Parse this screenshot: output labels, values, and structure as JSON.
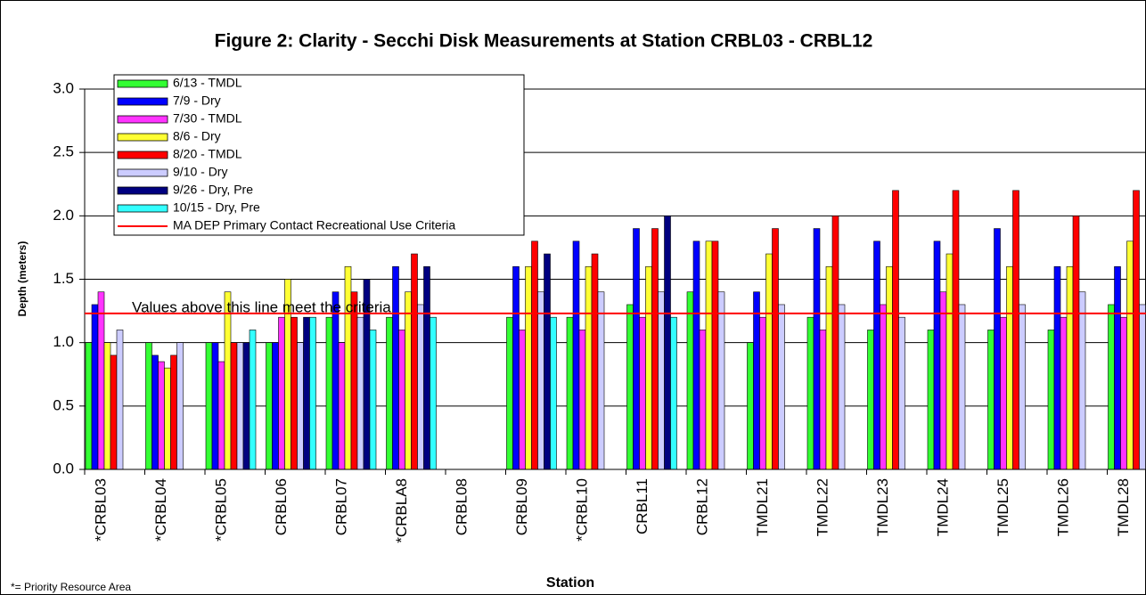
{
  "chart_data": {
    "type": "bar",
    "title": "Figure 2: Clarity - Secchi Disk Measurements at Station CRBL03 - CRBL12",
    "x_label": "Station",
    "y_label": "Depth (meters)",
    "annotation": "Values above this line meet the criteria",
    "footnote": "*= Priority Resource Area",
    "categories": [
      "*CRBL03",
      "*CRBL04",
      "*CRBL05",
      "CRBL06",
      "CRBL07",
      "*CRBLA8",
      "CRBL08",
      "CRBL09",
      "*CRBL10",
      "CRBL11",
      "CRBL12",
      "TMDL21",
      "TMDL22",
      "TMDL23",
      "TMDL24",
      "TMDL25",
      "TMDL26",
      "TMDL28"
    ],
    "series": [
      {
        "name": "6/13 - TMDL",
        "color": "#33ff33",
        "values": [
          1.0,
          1.0,
          1.0,
          1.0,
          1.2,
          1.2,
          null,
          1.2,
          1.2,
          1.3,
          1.4,
          1.0,
          1.2,
          1.1,
          1.1,
          1.1,
          1.1,
          1.3
        ]
      },
      {
        "name": "7/9 - Dry",
        "color": "#0000ff",
        "values": [
          1.3,
          0.9,
          1.0,
          1.0,
          1.4,
          1.6,
          null,
          1.6,
          1.8,
          1.9,
          1.8,
          1.4,
          1.9,
          1.8,
          1.8,
          1.9,
          1.6,
          1.6
        ]
      },
      {
        "name": "7/30 - TMDL",
        "color": "#ff33ff",
        "values": [
          1.4,
          0.85,
          0.85,
          1.2,
          1.0,
          1.1,
          null,
          1.1,
          1.1,
          1.2,
          1.1,
          1.2,
          1.1,
          1.3,
          1.4,
          1.2,
          1.2,
          1.2
        ]
      },
      {
        "name": "8/6 - Dry",
        "color": "#ffff33",
        "values": [
          1.0,
          0.8,
          1.4,
          1.5,
          1.6,
          1.4,
          null,
          1.6,
          1.6,
          1.6,
          1.8,
          1.7,
          1.6,
          1.6,
          1.7,
          1.6,
          1.6,
          1.8
        ]
      },
      {
        "name": "8/20 - TMDL",
        "color": "#ff0000",
        "values": [
          0.9,
          0.9,
          1.0,
          1.2,
          1.4,
          1.7,
          null,
          1.8,
          1.7,
          1.9,
          1.8,
          1.9,
          2.0,
          2.2,
          2.2,
          2.2,
          2.0,
          2.2
        ]
      },
      {
        "name": "9/10 - Dry",
        "color": "#ccccff",
        "values": [
          1.1,
          1.0,
          1.0,
          1.0,
          1.2,
          1.3,
          null,
          1.4,
          1.4,
          1.4,
          1.4,
          1.3,
          1.3,
          1.2,
          1.3,
          1.3,
          1.4,
          1.3
        ]
      },
      {
        "name": "9/26 - Dry, Pre",
        "color": "#000080",
        "values": [
          null,
          null,
          1.0,
          1.2,
          1.5,
          1.6,
          null,
          1.7,
          null,
          2.0,
          null,
          null,
          null,
          null,
          null,
          null,
          null,
          null
        ]
      },
      {
        "name": "10/15 - Dry, Pre",
        "color": "#33ffff",
        "values": [
          null,
          null,
          1.1,
          1.2,
          1.1,
          1.2,
          null,
          1.2,
          null,
          1.2,
          null,
          null,
          null,
          null,
          null,
          null,
          null,
          null
        ]
      }
    ],
    "criteria": {
      "name": "MA DEP Primary Contact Recreational Use Criteria",
      "color": "#ff0000",
      "value": 1.23
    },
    "ylim": [
      0,
      3
    ],
    "yticks": [
      {
        "value": 0,
        "label": "0.0"
      },
      {
        "value": 0.5,
        "label": "0.5"
      },
      {
        "value": 1,
        "label": "1.0"
      },
      {
        "value": 1.5,
        "label": "1.5"
      },
      {
        "value": 2,
        "label": "2.0"
      },
      {
        "value": 2.5,
        "label": "2.5"
      },
      {
        "value": 3,
        "label": "3.0"
      }
    ],
    "grid": true
  }
}
